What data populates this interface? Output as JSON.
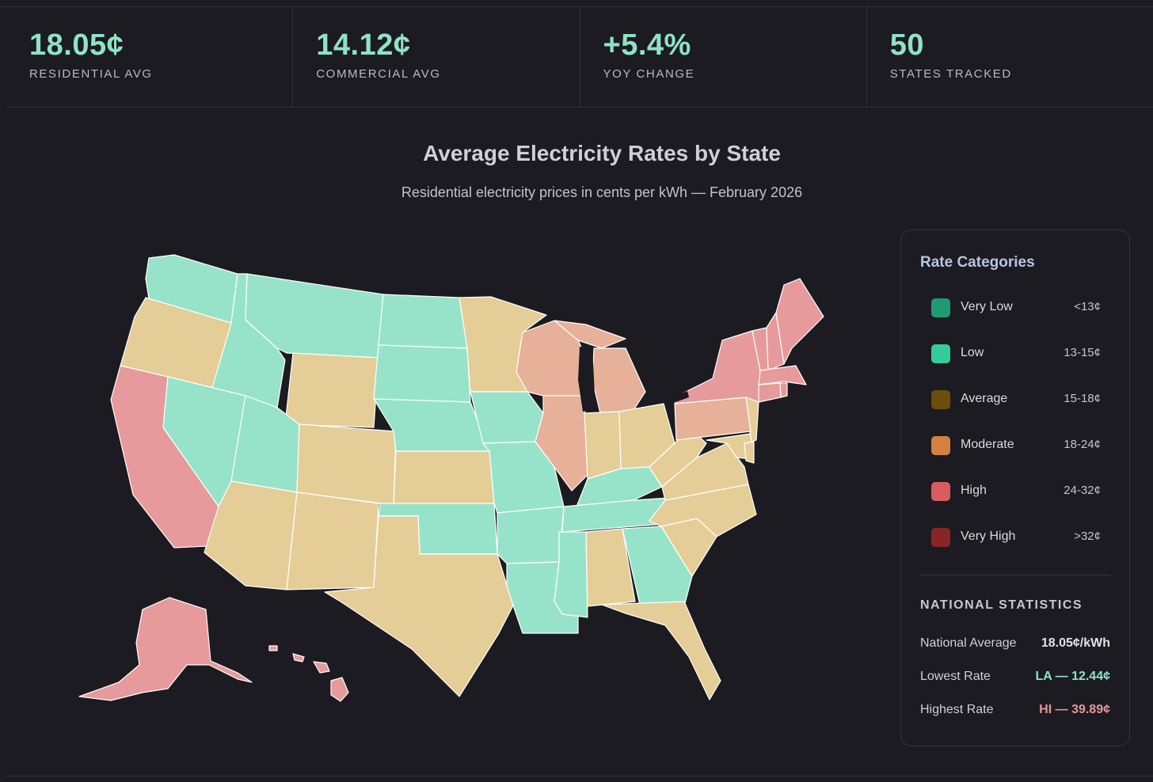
{
  "stats": [
    {
      "value": "18.05¢",
      "label": "RESIDENTIAL AVG"
    },
    {
      "value": "14.12¢",
      "label": "COMMERCIAL AVG"
    },
    {
      "value": "+5.4%",
      "label": "YOY CHANGE"
    },
    {
      "value": "50",
      "label": "STATES TRACKED"
    }
  ],
  "map": {
    "title": "Average Electricity Rates by State",
    "subtitle": "Residential electricity prices in cents per kWh — February 2026",
    "colors": {
      "low": "#97e3c9",
      "average": "#e4cd96",
      "moderate": "#e6b198",
      "high": "#e69a9b",
      "border": "#ffffff"
    }
  },
  "legend": {
    "title": "Rate Categories",
    "categories": [
      {
        "name": "Very Low",
        "range": "<13¢",
        "color": "#1f9b73"
      },
      {
        "name": "Low",
        "range": "13-15¢",
        "color": "#33cc98"
      },
      {
        "name": "Average",
        "range": "15-18¢",
        "color": "#6b4e0c"
      },
      {
        "name": "Moderate",
        "range": "18-24¢",
        "color": "#d3813f"
      },
      {
        "name": "High",
        "range": "24-32¢",
        "color": "#d95c5f"
      },
      {
        "name": "Very High",
        "range": ">32¢",
        "color": "#8a2525"
      }
    ],
    "national": {
      "heading": "NATIONAL STATISTICS",
      "rows": [
        {
          "label": "National Average",
          "value": "18.05¢/kWh",
          "color": "#e2e2e6"
        },
        {
          "label": "Lowest Rate",
          "value": "LA — 12.44¢",
          "color": "#8fe3c5"
        },
        {
          "label": "Highest Rate",
          "value": "HI — 39.89¢",
          "color": "#e59697"
        }
      ]
    }
  }
}
